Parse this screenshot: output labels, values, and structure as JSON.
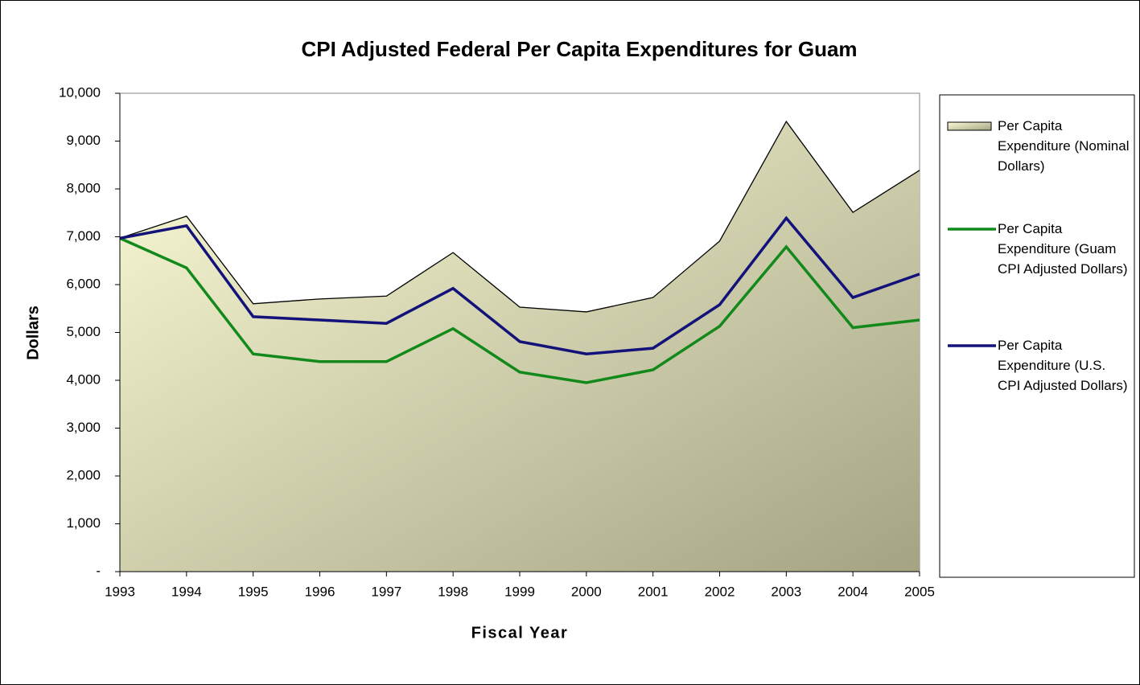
{
  "chart_data": {
    "type": "area_line",
    "title": "CPI Adjusted Federal Per Capita Expenditures for Guam",
    "x_label": "Fiscal Year",
    "y_label": "Dollars",
    "categories": [
      "1993",
      "1994",
      "1995",
      "1996",
      "1997",
      "1998",
      "1999",
      "2000",
      "2001",
      "2002",
      "2003",
      "2004",
      "2005"
    ],
    "series": [
      {
        "name": "Per Capita Expenditure (Nominal Dollars)",
        "kind": "area",
        "color": "#000000",
        "gradient": [
          "#fbfbd6",
          "#a4a484"
        ],
        "values": [
          6970,
          7430,
          5600,
          5700,
          5760,
          6670,
          5530,
          5430,
          5730,
          6910,
          9410,
          7510,
          8390
        ]
      },
      {
        "name": "Per Capita Expenditure (Guam CPI Adjusted Dollars)",
        "kind": "line",
        "color": "#12891a",
        "values": [
          6970,
          6350,
          4550,
          4390,
          4390,
          5080,
          4170,
          3950,
          4220,
          5130,
          6790,
          5100,
          5260
        ]
      },
      {
        "name": "Per Capita Expenditure (U.S. CPI Adjusted Dollars)",
        "kind": "line",
        "color": "#12127a",
        "values": [
          6970,
          7230,
          5330,
          5260,
          5190,
          5920,
          4810,
          4550,
          4670,
          5580,
          7390,
          5730,
          6220
        ]
      }
    ],
    "ylim": [
      0,
      10000
    ],
    "yticks": [
      {
        "value": 0,
        "label": "-"
      },
      {
        "value": 1000,
        "label": "1,000"
      },
      {
        "value": 2000,
        "label": "2,000"
      },
      {
        "value": 3000,
        "label": "3,000"
      },
      {
        "value": 4000,
        "label": "4,000"
      },
      {
        "value": 5000,
        "label": "5,000"
      },
      {
        "value": 6000,
        "label": "6,000"
      },
      {
        "value": 7000,
        "label": "7,000"
      },
      {
        "value": 8000,
        "label": "8,000"
      },
      {
        "value": 9000,
        "label": "9,000"
      },
      {
        "value": 10000,
        "label": "10,000"
      }
    ],
    "legend": "right"
  }
}
